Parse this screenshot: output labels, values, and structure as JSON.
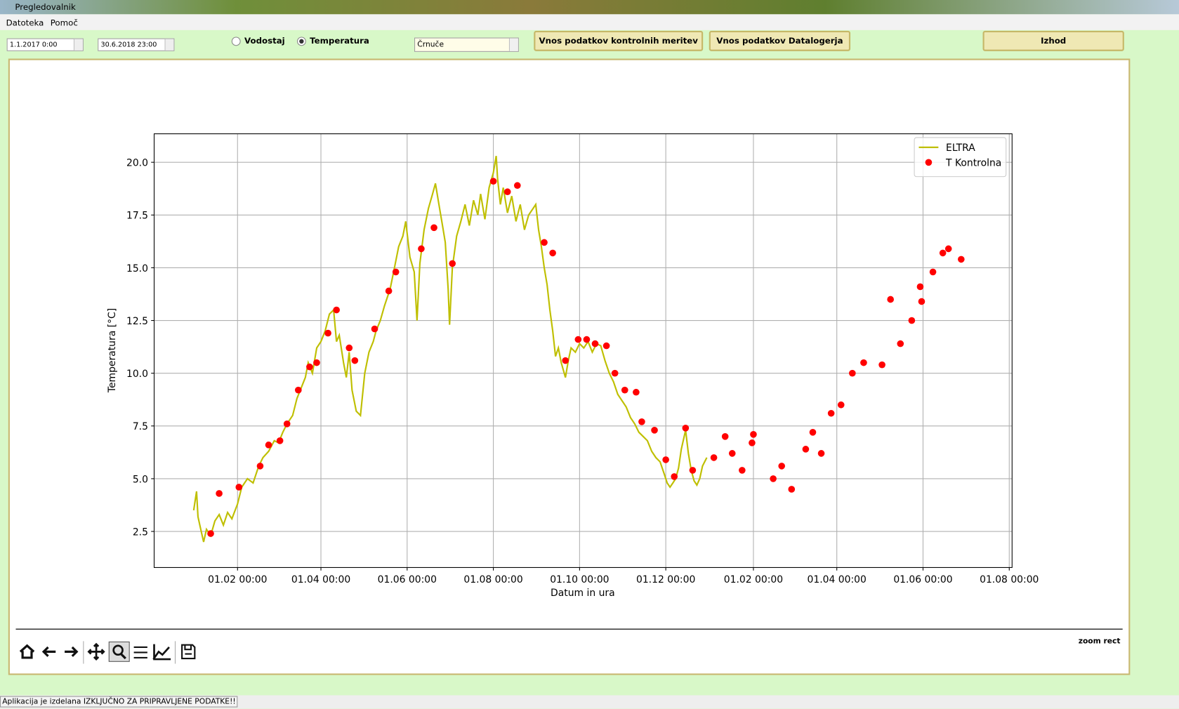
{
  "window": {
    "title": "Pregledovalnik"
  },
  "menu": [
    "Datoteka",
    "Pomoč"
  ],
  "controls": {
    "date_from": "1.1.2017 0:00",
    "date_to": "30.6.2018 23:00",
    "radios": [
      {
        "label": "Vodostaj",
        "checked": false
      },
      {
        "label": "Temperatura",
        "checked": true
      }
    ],
    "station": "Črnuče",
    "buttons": [
      "Vnos podatkov kontrolnih meritev",
      "Vnos podatkov Datalogerja",
      "Izhod"
    ]
  },
  "toolbar": {
    "mode": "zoom rect"
  },
  "status": "Aplikacija je izdelana IZKLJUČNO ZA PRIPRAVLJENE PODATKE!!",
  "chart_data": {
    "type": "line",
    "xlabel": "Datum in ura",
    "ylabel": "Temperatura [°C]",
    "grid": true,
    "legend": "upper right",
    "xlim": [
      -28,
      579
    ],
    "xticks": [
      {
        "value": 31,
        "label": "01.02 00:00"
      },
      {
        "value": 90,
        "label": "01.04 00:00"
      },
      {
        "value": 151,
        "label": "01.06 00:00"
      },
      {
        "value": 212,
        "label": "01.08 00:00"
      },
      {
        "value": 273,
        "label": "01.10 00:00"
      },
      {
        "value": 334,
        "label": "01.12 00:00"
      },
      {
        "value": 396,
        "label": "01.02 00:00"
      },
      {
        "value": 455,
        "label": "01.04 00:00"
      },
      {
        "value": 516,
        "label": "01.06 00:00"
      },
      {
        "value": 577,
        "label": "01.08 00:00"
      }
    ],
    "ylim": [
      0.79,
      21.35
    ],
    "yticks": [
      2.5,
      {
        "value": 5,
        "label": "5.0"
      },
      7.5,
      {
        "value": 10,
        "label": "10.0"
      },
      12.5,
      {
        "value": 15,
        "label": "15.0"
      },
      17.5,
      {
        "value": 20,
        "label": "20.0"
      }
    ],
    "series": [
      {
        "name": "ELTRA",
        "type": "line",
        "color": "#bfbf00",
        "x": [
          0,
          2,
          3,
          5,
          7,
          9,
          12,
          15,
          18,
          21,
          24,
          27,
          31,
          34,
          38,
          42,
          46,
          49,
          53,
          57,
          60,
          63,
          66,
          70,
          73,
          76,
          79,
          81,
          84,
          87,
          90,
          93,
          96,
          99,
          101,
          103,
          106,
          108,
          110,
          112,
          115,
          118,
          121,
          124,
          127,
          129,
          132,
          135,
          139,
          142,
          145,
          148,
          150,
          153,
          156,
          158,
          160,
          163,
          166,
          169,
          171,
          173,
          176,
          178,
          180,
          181,
          183,
          186,
          189,
          192,
          195,
          198,
          201,
          203,
          206,
          209,
          212,
          214,
          215,
          217,
          219,
          222,
          225,
          228,
          231,
          234,
          237,
          240,
          242,
          244,
          246,
          248,
          250,
          252,
          254,
          256,
          258,
          260,
          263,
          265,
          267,
          270,
          273,
          276,
          279,
          282,
          285,
          288,
          291,
          294,
          297,
          300,
          303,
          306,
          309,
          312,
          315,
          318,
          321,
          324,
          327,
          330,
          333,
          335,
          337,
          339,
          341,
          343,
          345,
          347,
          348,
          350,
          352,
          354,
          356,
          358,
          360,
          363
        ],
        "values": [
          3.5,
          4.4,
          3.2,
          2.6,
          2.0,
          2.6,
          2.3,
          3.0,
          3.3,
          2.8,
          3.4,
          3.1,
          3.8,
          4.6,
          5.0,
          4.8,
          5.6,
          6.0,
          6.3,
          6.8,
          6.7,
          7.2,
          7.6,
          8.0,
          8.8,
          9.3,
          9.8,
          10.5,
          10.0,
          11.2,
          11.5,
          12.0,
          12.8,
          13.0,
          11.5,
          11.8,
          10.5,
          9.8,
          11.0,
          9.2,
          8.2,
          8.0,
          10.0,
          11.0,
          11.5,
          12.0,
          12.5,
          13.2,
          14.0,
          15.0,
          16.0,
          16.5,
          17.2,
          15.5,
          14.8,
          12.5,
          15.2,
          16.8,
          17.8,
          18.5,
          19.0,
          18.2,
          17.0,
          16.2,
          14.0,
          12.3,
          15.0,
          16.5,
          17.2,
          18.0,
          17.0,
          18.2,
          17.5,
          18.5,
          17.3,
          18.8,
          19.5,
          20.3,
          19.2,
          18.0,
          18.8,
          17.6,
          18.4,
          17.2,
          18.0,
          16.8,
          17.5,
          17.8,
          18.0,
          16.8,
          16.0,
          15.0,
          14.2,
          13.0,
          12.0,
          10.8,
          11.2,
          10.5,
          9.8,
          10.6,
          11.2,
          11.0,
          11.4,
          11.2,
          11.5,
          11.0,
          11.4,
          11.3,
          10.6,
          10.0,
          9.6,
          9.0,
          8.7,
          8.4,
          7.9,
          7.6,
          7.2,
          7.0,
          6.8,
          6.3,
          6.0,
          5.8,
          5.2,
          4.8,
          4.6,
          4.8,
          5.0,
          5.5,
          6.4,
          7.0,
          7.3,
          6.2,
          5.4,
          4.9,
          4.7,
          5.0,
          5.6,
          6.0
        ]
      },
      {
        "name": "T Kontrolna",
        "type": "scatter",
        "color": "#ff0000",
        "x": [
          12,
          18,
          32,
          47,
          53,
          61,
          66,
          74,
          82,
          87,
          95,
          101,
          110,
          114,
          128,
          138,
          143,
          161,
          170,
          183,
          212,
          222,
          229,
          248,
          254,
          263,
          272,
          278,
          284,
          292,
          298,
          305,
          313,
          317,
          326,
          334,
          340,
          348,
          353,
          368,
          376,
          381,
          388,
          395,
          396,
          410,
          416,
          423,
          433,
          438,
          444,
          451,
          458,
          466,
          474,
          487,
          493,
          500,
          508,
          514,
          515,
          523,
          530,
          534,
          543
        ],
        "values": [
          2.4,
          4.3,
          4.6,
          5.6,
          6.6,
          6.8,
          7.6,
          9.2,
          10.3,
          10.5,
          11.9,
          13.0,
          11.2,
          10.6,
          12.1,
          13.9,
          14.8,
          15.9,
          16.9,
          15.2,
          19.1,
          18.6,
          18.9,
          16.2,
          15.7,
          10.6,
          11.6,
          11.6,
          11.4,
          11.3,
          10.0,
          9.2,
          9.1,
          7.7,
          7.3,
          5.9,
          5.1,
          7.4,
          5.4,
          6.0,
          7.0,
          6.2,
          5.4,
          6.7,
          7.1,
          5.0,
          5.6,
          4.5,
          6.4,
          7.2,
          6.2,
          8.1,
          8.5,
          10.0,
          10.5,
          10.4,
          13.5,
          11.4,
          12.5,
          14.1,
          13.4,
          14.8,
          15.7,
          15.9,
          15.4
        ]
      }
    ]
  }
}
